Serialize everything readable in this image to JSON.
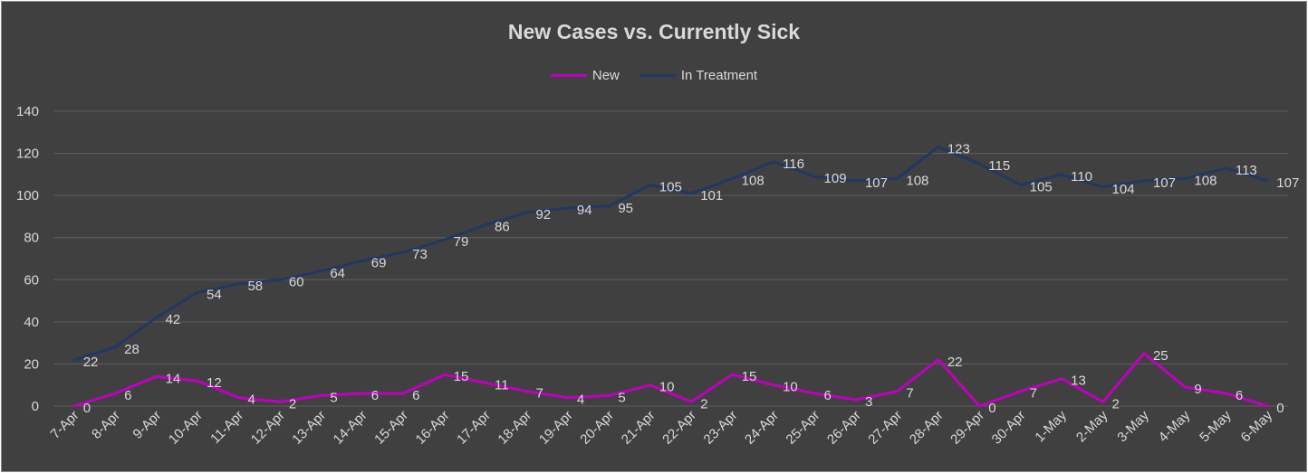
{
  "chart_data": {
    "type": "line",
    "title": "New Cases vs. Currently Sick",
    "xlabel": "",
    "ylabel": "",
    "ylim": [
      0,
      140
    ],
    "yticks": [
      0,
      20,
      40,
      60,
      80,
      100,
      120,
      140
    ],
    "grid": true,
    "legend_position": "top",
    "categories": [
      "7-Apr",
      "8-Apr",
      "9-Apr",
      "10-Apr",
      "11-Apr",
      "12-Apr",
      "13-Apr",
      "14-Apr",
      "15-Apr",
      "16-Apr",
      "17-Apr",
      "18-Apr",
      "19-Apr",
      "20-Apr",
      "21-Apr",
      "22-Apr",
      "23-Apr",
      "24-Apr",
      "25-Apr",
      "26-Apr",
      "27-Apr",
      "28-Apr",
      "29-Apr",
      "30-Apr",
      "1-May",
      "2-May",
      "3-May",
      "4-May",
      "5-May",
      "6-May"
    ],
    "series": [
      {
        "name": "New",
        "color": "#c000c0",
        "values": [
          0,
          6,
          14,
          12,
          4,
          2,
          5,
          6,
          6,
          15,
          11,
          7,
          4,
          5,
          10,
          2,
          15,
          10,
          6,
          3,
          7,
          22,
          0,
          7,
          13,
          2,
          25,
          9,
          6,
          0
        ]
      },
      {
        "name": "In Treatment",
        "color": "#203864",
        "values": [
          22,
          28,
          42,
          54,
          58,
          60,
          64,
          69,
          73,
          79,
          86,
          92,
          94,
          95,
          105,
          101,
          108,
          116,
          109,
          107,
          108,
          123,
          115,
          105,
          110,
          104,
          107,
          108,
          113,
          107
        ]
      }
    ]
  },
  "colors": {
    "background": "#404040",
    "text": "#d9d9d9",
    "gridline": "#5e5e5e"
  }
}
